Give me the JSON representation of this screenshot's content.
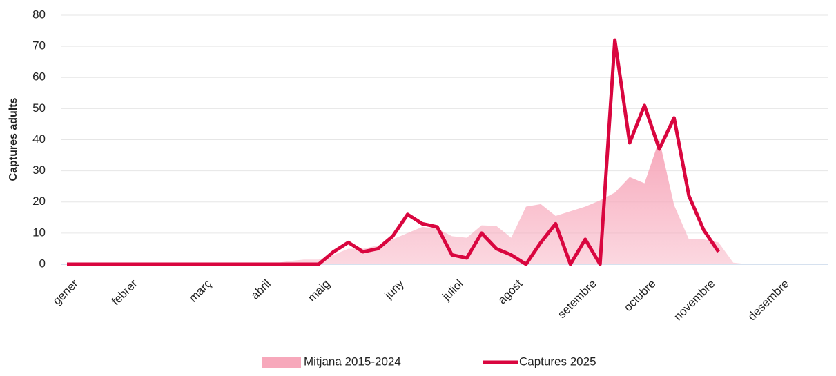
{
  "chart_data": {
    "type": "line",
    "y_label": "Captures adults",
    "categories": [
      "gener",
      null,
      null,
      null,
      "febrer",
      null,
      null,
      null,
      null,
      "març",
      null,
      null,
      null,
      "abril",
      null,
      null,
      null,
      "maig",
      null,
      null,
      null,
      null,
      "juny",
      null,
      null,
      null,
      "juliol",
      null,
      null,
      null,
      "agost",
      null,
      null,
      null,
      null,
      "setembre",
      null,
      null,
      null,
      "octubre",
      null,
      null,
      null,
      "novembre",
      null,
      null,
      null,
      null,
      "desembre",
      null,
      null,
      null
    ],
    "series": [
      {
        "name": "Mitjana 2015-2024",
        "kind": "area",
        "color": "#f7a8bb",
        "values": [
          0,
          0,
          0,
          0,
          0,
          0,
          0,
          0,
          0,
          0,
          0,
          0,
          0,
          0,
          0.3,
          1,
          1.5,
          1.5,
          3,
          5,
          5,
          6,
          8,
          10,
          12,
          11.5,
          9,
          8.5,
          12.5,
          12.3,
          8.5,
          18.5,
          19.3,
          15.5,
          17,
          18.5,
          20.5,
          23,
          28,
          26,
          40,
          19,
          8,
          8,
          7,
          0.5,
          0,
          0,
          0,
          0,
          0,
          0
        ]
      },
      {
        "name": "Captures 2025",
        "kind": "line",
        "color": "#d9063f",
        "values": [
          0,
          0,
          0,
          0,
          0,
          0,
          0,
          0,
          0,
          0,
          0,
          0,
          0,
          0,
          0,
          0,
          0,
          0,
          4,
          7,
          4,
          5,
          9,
          16,
          13,
          12,
          3,
          2,
          10,
          5,
          3,
          0,
          7,
          13,
          0,
          8,
          0,
          72,
          39,
          51,
          37,
          47,
          22,
          11,
          4,
          null,
          null,
          null,
          null,
          null,
          null,
          null
        ]
      }
    ],
    "ylim": [
      0,
      80
    ],
    "yticks": [
      0,
      10,
      20,
      30,
      40,
      50,
      60,
      70,
      80
    ],
    "grid": true,
    "legend": "bottom"
  }
}
